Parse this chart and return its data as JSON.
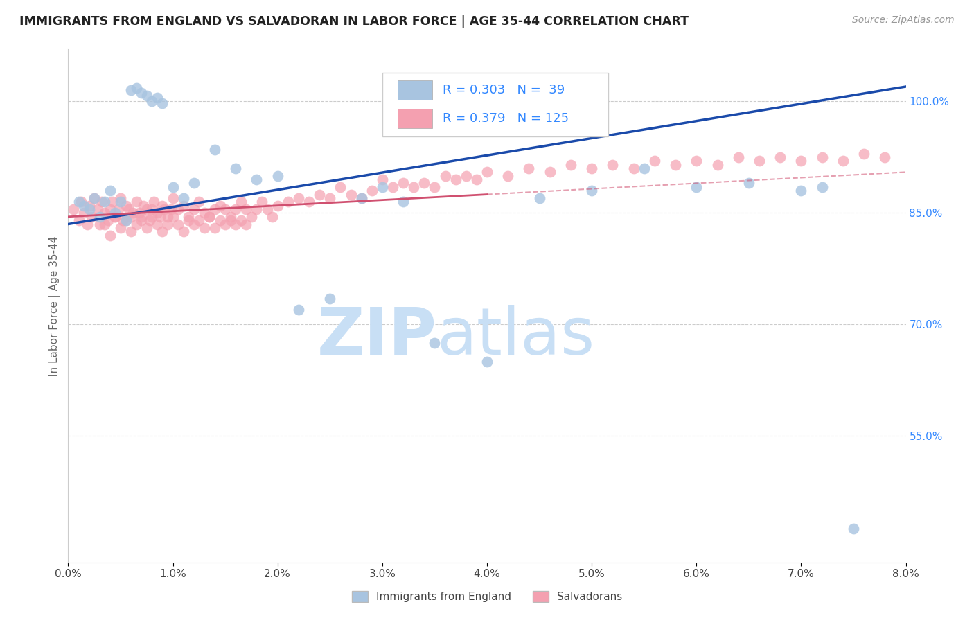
{
  "title": "IMMIGRANTS FROM ENGLAND VS SALVADORAN IN LABOR FORCE | AGE 35-44 CORRELATION CHART",
  "source": "Source: ZipAtlas.com",
  "ylabel": "In Labor Force | Age 35-44",
  "right_yticks": [
    55.0,
    70.0,
    85.0,
    100.0
  ],
  "legend_england_R": "0.303",
  "legend_england_N": "39",
  "legend_salvador_R": "0.379",
  "legend_salvador_N": "125",
  "legend_label_england": "Immigrants from England",
  "legend_label_salvador": "Salvadorans",
  "color_england": "#a8c4e0",
  "color_england_line": "#1a4aaa",
  "color_salvador": "#f4a0b0",
  "color_salvador_line": "#d05070",
  "color_axis_right": "#3388ff",
  "xmin": 0.0,
  "xmax": 8.0,
  "ymin": 38.0,
  "ymax": 107.0,
  "eng_x": [
    0.1,
    0.15,
    0.2,
    0.25,
    0.3,
    0.35,
    0.4,
    0.45,
    0.5,
    0.55,
    0.6,
    0.65,
    0.7,
    0.75,
    0.8,
    0.85,
    0.9,
    1.0,
    1.1,
    1.2,
    1.4,
    1.6,
    1.8,
    2.0,
    2.2,
    2.5,
    3.0,
    3.5,
    4.0,
    5.0,
    5.5,
    6.0,
    6.5,
    7.0,
    7.2,
    7.5,
    2.8,
    3.2,
    4.5
  ],
  "eng_y": [
    86.5,
    86.0,
    85.5,
    87.0,
    84.5,
    86.5,
    88.0,
    85.0,
    86.5,
    84.0,
    101.5,
    101.8,
    101.2,
    100.8,
    100.0,
    100.5,
    99.8,
    88.5,
    87.0,
    89.0,
    93.5,
    91.0,
    89.5,
    90.0,
    72.0,
    73.5,
    88.5,
    67.5,
    65.0,
    88.0,
    91.0,
    88.5,
    89.0,
    88.0,
    88.5,
    42.5,
    87.0,
    86.5,
    87.0
  ],
  "sal_x": [
    0.05,
    0.1,
    0.12,
    0.15,
    0.18,
    0.2,
    0.22,
    0.25,
    0.28,
    0.3,
    0.32,
    0.35,
    0.38,
    0.4,
    0.42,
    0.45,
    0.48,
    0.5,
    0.52,
    0.55,
    0.58,
    0.6,
    0.62,
    0.65,
    0.68,
    0.7,
    0.72,
    0.75,
    0.78,
    0.8,
    0.82,
    0.85,
    0.88,
    0.9,
    0.92,
    0.95,
    0.98,
    1.0,
    1.05,
    1.1,
    1.15,
    1.2,
    1.25,
    1.3,
    1.35,
    1.4,
    1.45,
    1.5,
    1.55,
    1.6,
    1.65,
    1.7,
    1.75,
    1.8,
    1.85,
    1.9,
    1.95,
    2.0,
    2.1,
    2.2,
    2.3,
    2.4,
    2.5,
    2.6,
    2.7,
    2.8,
    2.9,
    3.0,
    3.1,
    3.2,
    3.3,
    3.4,
    3.5,
    3.6,
    3.7,
    3.8,
    3.9,
    4.0,
    4.2,
    4.4,
    4.6,
    4.8,
    5.0,
    5.2,
    5.4,
    5.6,
    5.8,
    6.0,
    6.2,
    6.4,
    6.6,
    6.8,
    7.0,
    7.2,
    7.4,
    7.6,
    7.8,
    0.35,
    0.4,
    0.45,
    0.5,
    0.55,
    0.6,
    0.65,
    0.7,
    0.75,
    0.8,
    0.85,
    0.9,
    0.95,
    1.0,
    1.05,
    1.1,
    1.15,
    1.2,
    1.25,
    1.3,
    1.35,
    1.4,
    1.45,
    1.5,
    1.55,
    1.6,
    1.65,
    1.7
  ],
  "sal_y": [
    85.5,
    84.0,
    86.5,
    85.0,
    83.5,
    86.0,
    84.5,
    87.0,
    85.5,
    83.5,
    86.5,
    85.0,
    84.0,
    85.5,
    86.5,
    84.5,
    85.5,
    87.0,
    84.0,
    86.0,
    85.5,
    84.5,
    85.0,
    86.5,
    85.0,
    84.5,
    86.0,
    85.5,
    84.0,
    85.5,
    86.5,
    85.0,
    84.5,
    86.0,
    85.5,
    84.5,
    85.5,
    87.0,
    85.5,
    86.0,
    84.5,
    85.5,
    86.5,
    85.0,
    84.5,
    85.5,
    86.0,
    85.5,
    84.5,
    85.5,
    86.5,
    85.5,
    84.5,
    85.5,
    86.5,
    85.5,
    84.5,
    86.0,
    86.5,
    87.0,
    86.5,
    87.5,
    87.0,
    88.5,
    87.5,
    87.0,
    88.0,
    89.5,
    88.5,
    89.0,
    88.5,
    89.0,
    88.5,
    90.0,
    89.5,
    90.0,
    89.5,
    90.5,
    90.0,
    91.0,
    90.5,
    91.5,
    91.0,
    91.5,
    91.0,
    92.0,
    91.5,
    92.0,
    91.5,
    92.5,
    92.0,
    92.5,
    92.0,
    92.5,
    92.0,
    93.0,
    92.5,
    83.5,
    82.0,
    84.5,
    83.0,
    84.0,
    82.5,
    83.5,
    84.0,
    83.0,
    84.5,
    83.5,
    82.5,
    83.5,
    84.5,
    83.5,
    82.5,
    84.0,
    83.5,
    84.0,
    83.0,
    84.5,
    83.0,
    84.0,
    83.5,
    84.0,
    83.5,
    84.0,
    83.5
  ],
  "eng_line_x0": 0.0,
  "eng_line_y0": 83.5,
  "eng_line_x1": 8.0,
  "eng_line_y1": 102.0,
  "sal_line_x0": 0.0,
  "sal_line_y0": 84.5,
  "sal_line_x1": 8.0,
  "sal_line_y1": 90.5
}
